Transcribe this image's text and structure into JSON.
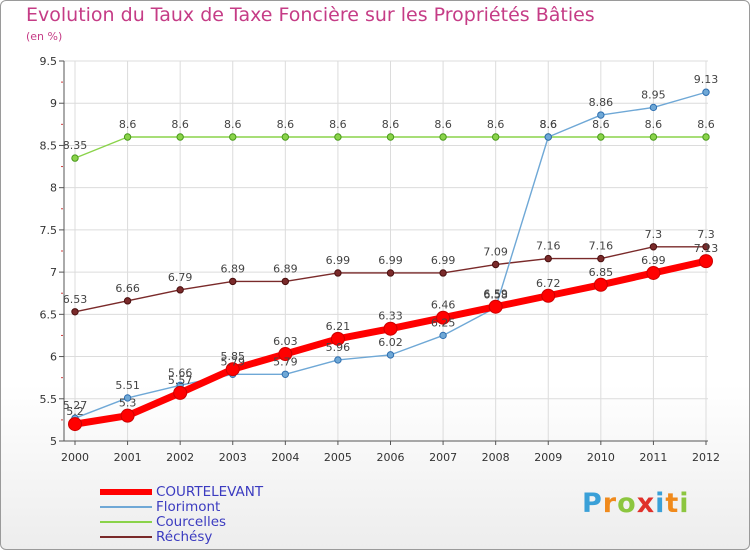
{
  "chart_data": {
    "type": "line",
    "title": "Evolution du Taux de Taxe Foncière sur les Propriétés Bâties",
    "subtitle": "(en %)",
    "xlabel": "",
    "ylabel": "(en %)",
    "x": [
      "2000",
      "2001",
      "2002",
      "2003",
      "2004",
      "2005",
      "2006",
      "2007",
      "2008",
      "2009",
      "2010",
      "2011",
      "2012"
    ],
    "ylim": [
      5,
      9.5
    ],
    "yticks": [
      "5",
      "5.5",
      "6",
      "6.5",
      "7",
      "7.5",
      "8",
      "8.5",
      "9",
      "9.5"
    ],
    "grid": true,
    "series": [
      {
        "name": "COURTELEVANT",
        "color": "#ff0000",
        "values": [
          5.2,
          5.3,
          5.57,
          5.85,
          6.03,
          6.21,
          6.33,
          6.46,
          6.59,
          6.72,
          6.85,
          6.99,
          7.13
        ],
        "labels": [
          "5.2",
          "5.3",
          "5.57",
          "5.85",
          "6.03",
          "6.21",
          "6.33",
          "6.46",
          "6.59",
          "6.72",
          "6.85",
          "6.99",
          "7.13"
        ]
      },
      {
        "name": "Florimont",
        "color": "#6fa8d6",
        "values": [
          5.27,
          5.51,
          5.66,
          5.79,
          5.79,
          5.96,
          6.02,
          6.25,
          6.58,
          8.6,
          8.86,
          8.95,
          9.13
        ],
        "labels": [
          "5.27",
          "5.51",
          "5.66",
          "5.79",
          "5.79",
          "5.96",
          "6.02",
          "6.25",
          "6.58",
          "8.6",
          "8.86",
          "8.95",
          "9.13"
        ]
      },
      {
        "name": "Courcelles",
        "color": "#8ad34a",
        "values": [
          8.35,
          8.6,
          8.6,
          8.6,
          8.6,
          8.6,
          8.6,
          8.6,
          8.6,
          8.6,
          8.6,
          8.6,
          8.6
        ],
        "labels": [
          "8.35",
          "8.6",
          "8.6",
          "8.6",
          "8.6",
          "8.6",
          "8.6",
          "8.6",
          "8.6",
          "8.6",
          "8.6",
          "8.6",
          "8.6"
        ]
      },
      {
        "name": "Réchésy",
        "color": "#7a2a2a",
        "values": [
          6.53,
          6.66,
          6.79,
          6.89,
          6.89,
          6.99,
          6.99,
          6.99,
          7.09,
          7.16,
          7.16,
          7.3,
          7.3
        ],
        "labels": [
          "6.53",
          "6.66",
          "6.79",
          "6.89",
          "6.89",
          "6.99",
          "6.99",
          "6.99",
          "7.09",
          "7.16",
          "7.16",
          "7.3",
          "7.3"
        ]
      }
    ],
    "legend_position": "bottom-left"
  },
  "logo": {
    "text": "Proxiti",
    "letters": [
      "P",
      "r",
      "o",
      "x",
      "i",
      "t",
      "i"
    ],
    "colors": [
      "#3aa0d8",
      "#f08a1c",
      "#8cc63f",
      "#e0312b",
      "#3aa0d8",
      "#f08a1c",
      "#8cc63f"
    ]
  }
}
